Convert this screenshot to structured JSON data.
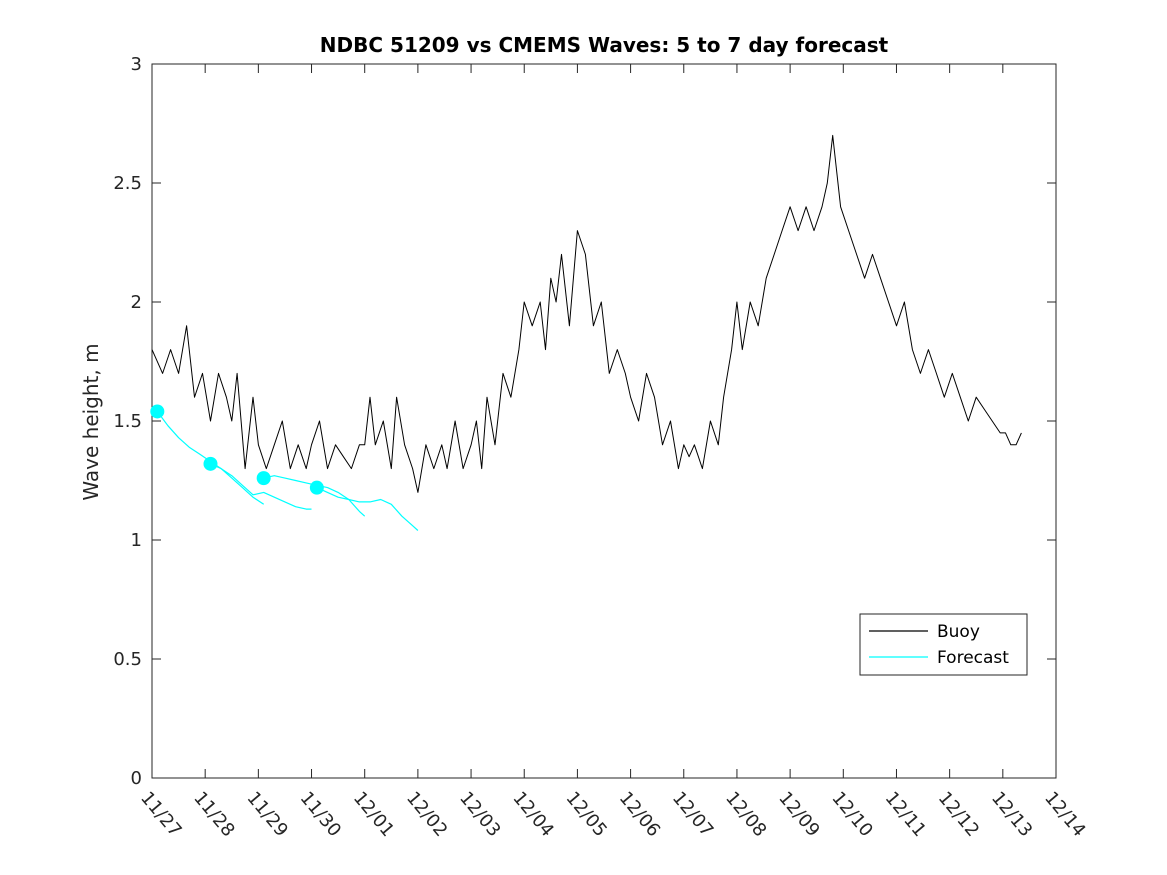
{
  "chart_data": {
    "type": "line",
    "title": "NDBC 51209 vs CMEMS Waves: 5 to 7 day forecast",
    "xlabel": "",
    "ylabel": "Wave height, m",
    "ylim": [
      0,
      3
    ],
    "yticks": [
      "0",
      "0.5",
      "1",
      "1.5",
      "2",
      "2.5",
      "3"
    ],
    "xlim": [
      0,
      17
    ],
    "xtick_labels": [
      "11/27",
      "11/28",
      "11/29",
      "11/30",
      "12/01",
      "12/02",
      "12/03",
      "12/04",
      "12/05",
      "12/06",
      "12/07",
      "12/08",
      "12/09",
      "12/10",
      "12/11",
      "12/12",
      "12/13",
      "12/14"
    ],
    "grid": false,
    "legend": {
      "location": "bottom-right",
      "entries": [
        "Buoy",
        "Forecast"
      ]
    },
    "colors": {
      "buoy": "#000000",
      "forecast": "#00ffff"
    },
    "series": [
      {
        "name": "Buoy",
        "x": [
          0.0,
          0.2,
          0.35,
          0.5,
          0.65,
          0.8,
          0.95,
          1.1,
          1.25,
          1.4,
          1.5,
          1.6,
          1.75,
          1.9,
          2.0,
          2.15,
          2.3,
          2.45,
          2.6,
          2.75,
          2.9,
          3.0,
          3.15,
          3.3,
          3.45,
          3.6,
          3.75,
          3.9,
          4.0,
          4.1,
          4.2,
          4.35,
          4.5,
          4.6,
          4.75,
          4.9,
          5.0,
          5.15,
          5.3,
          5.45,
          5.55,
          5.7,
          5.85,
          6.0,
          6.1,
          6.2,
          6.3,
          6.45,
          6.6,
          6.75,
          6.9,
          7.0,
          7.15,
          7.3,
          7.4,
          7.5,
          7.6,
          7.7,
          7.85,
          8.0,
          8.15,
          8.3,
          8.45,
          8.6,
          8.75,
          8.9,
          9.0,
          9.15,
          9.3,
          9.45,
          9.6,
          9.75,
          9.9,
          10.0,
          10.1,
          10.2,
          10.35,
          10.5,
          10.65,
          10.75,
          10.9,
          11.0,
          11.1,
          11.25,
          11.4,
          11.55,
          11.7,
          11.85,
          12.0,
          12.15,
          12.3,
          12.45,
          12.6,
          12.7,
          12.8,
          12.95,
          13.1,
          13.25,
          13.4,
          13.55,
          13.7,
          13.85,
          14.0,
          14.15,
          14.3,
          14.45,
          14.6,
          14.75,
          14.9,
          15.05,
          15.2,
          15.35,
          15.5,
          15.65,
          15.8,
          15.95,
          16.05,
          16.15,
          16.25,
          16.35
        ],
        "values": [
          1.8,
          1.7,
          1.8,
          1.7,
          1.9,
          1.6,
          1.7,
          1.5,
          1.7,
          1.6,
          1.5,
          1.7,
          1.3,
          1.6,
          1.4,
          1.3,
          1.4,
          1.5,
          1.3,
          1.4,
          1.3,
          1.4,
          1.5,
          1.3,
          1.4,
          1.35,
          1.3,
          1.4,
          1.4,
          1.6,
          1.4,
          1.5,
          1.3,
          1.6,
          1.4,
          1.3,
          1.2,
          1.4,
          1.3,
          1.4,
          1.3,
          1.5,
          1.3,
          1.4,
          1.5,
          1.3,
          1.6,
          1.4,
          1.7,
          1.6,
          1.8,
          2.0,
          1.9,
          2.0,
          1.8,
          2.1,
          2.0,
          2.2,
          1.9,
          2.3,
          2.2,
          1.9,
          2.0,
          1.7,
          1.8,
          1.7,
          1.6,
          1.5,
          1.7,
          1.6,
          1.4,
          1.5,
          1.3,
          1.4,
          1.35,
          1.4,
          1.3,
          1.5,
          1.4,
          1.6,
          1.8,
          2.0,
          1.8,
          2.0,
          1.9,
          2.1,
          2.2,
          2.3,
          2.4,
          2.3,
          2.4,
          2.3,
          2.4,
          2.5,
          2.7,
          2.4,
          2.3,
          2.2,
          2.1,
          2.2,
          2.1,
          2.0,
          1.9,
          2.0,
          1.8,
          1.7,
          1.8,
          1.7,
          1.6,
          1.7,
          1.6,
          1.5,
          1.6,
          1.55,
          1.5,
          1.45,
          1.45,
          1.4,
          1.4,
          1.45
        ]
      },
      {
        "name": "Forecast",
        "x": [
          0.1,
          0.3,
          0.5,
          0.7,
          0.9,
          1.1,
          1.3,
          1.5,
          1.7,
          1.9,
          2.1
        ],
        "values": [
          1.54,
          1.48,
          1.43,
          1.39,
          1.36,
          1.33,
          1.3,
          1.26,
          1.22,
          1.18,
          1.15
        ]
      },
      {
        "name": "Forecast",
        "x": [
          1.1,
          1.3,
          1.5,
          1.7,
          1.9,
          2.1,
          2.3,
          2.5,
          2.7,
          2.9,
          3.0
        ],
        "values": [
          1.32,
          1.3,
          1.27,
          1.23,
          1.19,
          1.2,
          1.18,
          1.16,
          1.14,
          1.13,
          1.13
        ]
      },
      {
        "name": "Forecast",
        "x": [
          2.1,
          2.3,
          2.5,
          2.7,
          2.9,
          3.1,
          3.3,
          3.5,
          3.7,
          3.9,
          4.0
        ],
        "values": [
          1.26,
          1.27,
          1.26,
          1.25,
          1.24,
          1.23,
          1.22,
          1.2,
          1.17,
          1.12,
          1.1
        ]
      },
      {
        "name": "Forecast",
        "x": [
          3.1,
          3.3,
          3.5,
          3.7,
          3.9,
          4.1,
          4.3,
          4.5,
          4.7,
          4.9,
          5.0
        ],
        "values": [
          1.22,
          1.2,
          1.18,
          1.17,
          1.16,
          1.16,
          1.17,
          1.15,
          1.1,
          1.06,
          1.04
        ]
      }
    ],
    "forecast_markers": {
      "x": [
        0.1,
        1.1,
        2.1,
        3.1
      ],
      "values": [
        1.54,
        1.32,
        1.26,
        1.22
      ]
    }
  }
}
